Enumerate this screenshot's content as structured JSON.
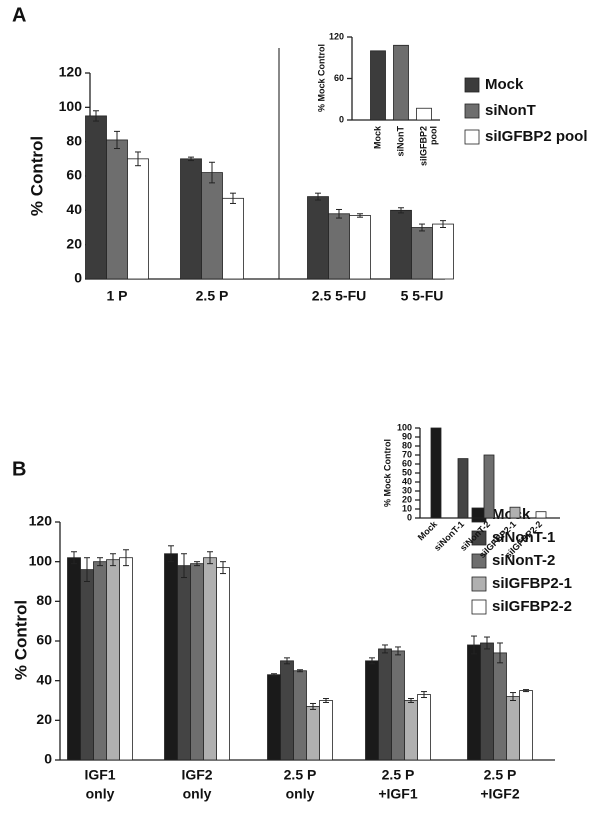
{
  "chart_data": [
    {
      "type": "bar",
      "label": "A",
      "ylabel": "% Control",
      "categories": [
        "1 P",
        "2.5 P",
        "2.5 5-FU",
        "5 5-FU"
      ],
      "series": [
        {
          "name": "Mock",
          "color": "#3c3c3c",
          "values": [
            95,
            70,
            48,
            40
          ],
          "errors": [
            3,
            1,
            2,
            1.5
          ]
        },
        {
          "name": "siNonT",
          "color": "#6e6e6e",
          "values": [
            81,
            62,
            38,
            30
          ],
          "errors": [
            5,
            6,
            2.5,
            2
          ]
        },
        {
          "name": "siIGFBP2 pool",
          "color": "#ffffff",
          "values": [
            70,
            47,
            37,
            32
          ],
          "errors": [
            4,
            3,
            1,
            2
          ]
        }
      ],
      "ylim": [
        0,
        120
      ],
      "yticks": [
        0,
        20,
        40,
        60,
        80,
        100,
        120
      ]
    },
    {
      "type": "bar",
      "ylabel": "% Mock Control",
      "categories": [
        [
          "Mock"
        ],
        [
          "siNonT"
        ],
        [
          "siIGFBP2",
          "pool"
        ]
      ],
      "values": [
        100,
        108,
        17
      ],
      "colors": [
        "#3c3c3c",
        "#6e6e6e",
        "#ffffff"
      ],
      "ylim": [
        0,
        120
      ],
      "yticks": [
        0,
        60,
        120
      ]
    },
    {
      "type": "bar",
      "label": "B",
      "ylabel": "% Control",
      "categories": [
        [
          "IGF1",
          "only"
        ],
        [
          "IGF2",
          "only"
        ],
        [
          "2.5 P",
          "only"
        ],
        [
          "2.5 P",
          "+IGF1"
        ],
        [
          "2.5 P",
          "+IGF2"
        ]
      ],
      "series": [
        {
          "name": "Mock",
          "color": "#1a1a1a",
          "values": [
            102,
            104,
            43,
            50,
            58
          ],
          "errors": [
            3,
            4,
            0.5,
            1.5,
            4.5
          ]
        },
        {
          "name": "siNonT-1",
          "color": "#444444",
          "values": [
            96,
            98,
            50,
            56,
            59
          ],
          "errors": [
            6,
            6,
            1.5,
            2,
            3
          ]
        },
        {
          "name": "siNonT-2",
          "color": "#6e6e6e",
          "values": [
            100,
            99,
            45,
            55,
            54
          ],
          "errors": [
            2,
            1,
            0.5,
            2,
            5
          ]
        },
        {
          "name": "siIGFBP2-1",
          "color": "#b0b0b0",
          "values": [
            101,
            102,
            27,
            30,
            32
          ],
          "errors": [
            3,
            3,
            1.5,
            1,
            2
          ]
        },
        {
          "name": "siIGFBP2-2",
          "color": "#ffffff",
          "values": [
            102,
            97,
            30,
            33,
            35
          ],
          "errors": [
            4,
            3,
            1,
            1.5,
            0.5
          ]
        }
      ],
      "ylim": [
        0,
        120
      ],
      "yticks": [
        0,
        20,
        40,
        60,
        80,
        100,
        120
      ]
    },
    {
      "type": "bar",
      "ylabel": "% Mock Control",
      "categories": [
        [
          "Mock"
        ],
        [
          "siNonT-1"
        ],
        [
          "siNonT-2"
        ],
        [
          "siIGFBP2-1"
        ],
        [
          "siIGFBP2-2"
        ]
      ],
      "values": [
        100,
        66,
        70,
        12,
        7
      ],
      "colors": [
        "#1a1a1a",
        "#444444",
        "#6e6e6e",
        "#b0b0b0",
        "#ffffff"
      ],
      "ylim": [
        0,
        100
      ],
      "yticks": [
        0,
        10,
        20,
        30,
        40,
        50,
        60,
        70,
        80,
        90,
        100
      ]
    }
  ]
}
